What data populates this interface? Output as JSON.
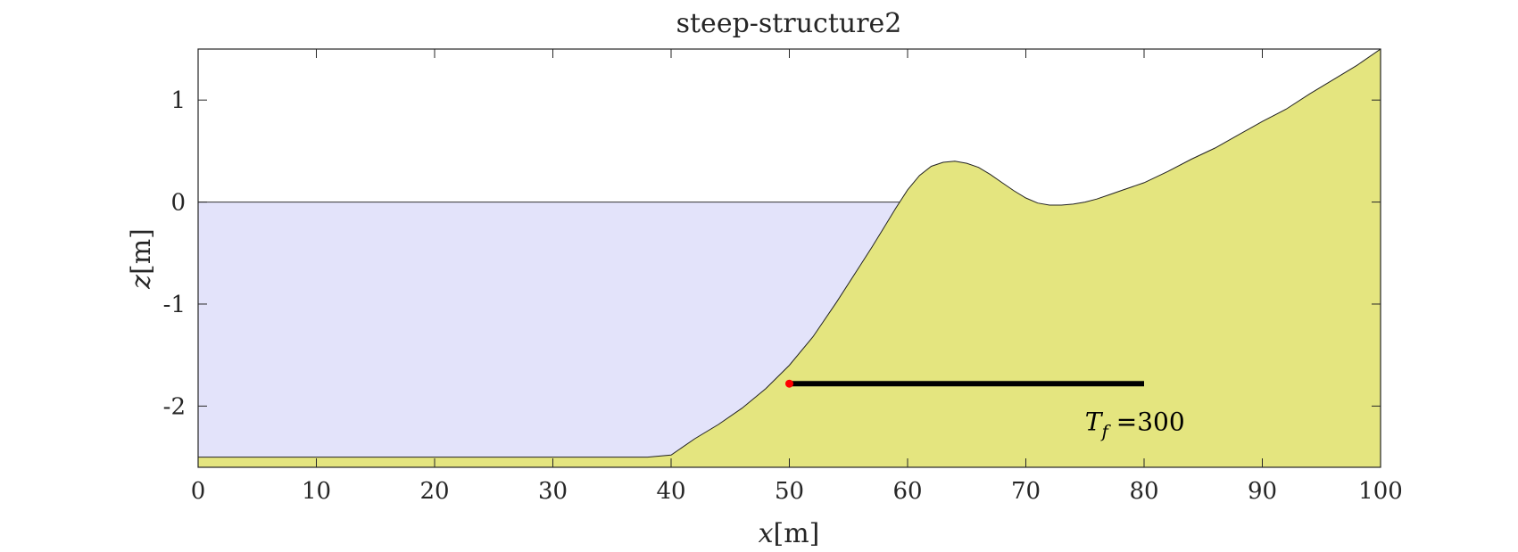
{
  "chart_data": {
    "type": "area",
    "title": "steep-structure2",
    "xlabel_var": "x",
    "xlabel_unit": "[m]",
    "ylabel_var": "z",
    "ylabel_unit": "[m]",
    "xlim": [
      0,
      100
    ],
    "ylim": [
      -2.6,
      1.5
    ],
    "xticks": [
      0,
      10,
      20,
      30,
      40,
      50,
      60,
      70,
      80,
      90,
      100
    ],
    "xtick_labels": [
      "0",
      "10",
      "20",
      "30",
      "40",
      "50",
      "60",
      "70",
      "80",
      "90",
      "100"
    ],
    "yticks": [
      1,
      0,
      -1,
      -2
    ],
    "ytick_labels": [
      "1",
      "0",
      "-1",
      "-2"
    ],
    "grid": false,
    "series": [
      {
        "role": "bottom-profile",
        "fill": "#e4e57f",
        "x": [
          0,
          10,
          20,
          30,
          38,
          40,
          42,
          44,
          46,
          48,
          50,
          52,
          54,
          56,
          57,
          58,
          59,
          60,
          61,
          62,
          63,
          64,
          65,
          66,
          67,
          68,
          69,
          70,
          71,
          72,
          73,
          74,
          75,
          76,
          77,
          78,
          80,
          82,
          84,
          86,
          88,
          90,
          92,
          94,
          96,
          98,
          100
        ],
        "y": [
          -2.5,
          -2.5,
          -2.5,
          -2.5,
          -2.5,
          -2.48,
          -2.32,
          -2.18,
          -2.02,
          -1.83,
          -1.6,
          -1.32,
          -0.98,
          -0.62,
          -0.44,
          -0.25,
          -0.06,
          0.12,
          0.26,
          0.35,
          0.39,
          0.4,
          0.38,
          0.34,
          0.27,
          0.19,
          0.11,
          0.04,
          -0.01,
          -0.03,
          -0.03,
          -0.02,
          0.0,
          0.03,
          0.07,
          0.11,
          0.19,
          0.3,
          0.42,
          0.53,
          0.66,
          0.79,
          0.91,
          1.06,
          1.2,
          1.34,
          1.5
        ]
      },
      {
        "role": "still-water-level",
        "fill": "#e3e3fa",
        "value": 0
      }
    ],
    "transect": {
      "x_start": 50,
      "x_end": 80,
      "y": -1.78,
      "line_color": "#000000",
      "marker_color": "#ff0000"
    },
    "annotation": {
      "var": "T",
      "sub": "f",
      "value_text": " =300",
      "x": 75,
      "y": -2.15
    }
  }
}
